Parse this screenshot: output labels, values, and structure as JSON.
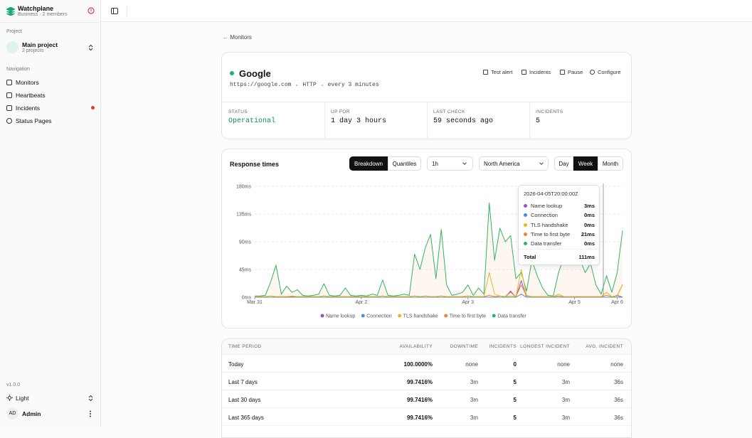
{
  "sidebar": {
    "workspace": "Watchplane",
    "workspace_sub": "Business · 2 members",
    "project_heading": "Project",
    "project": "Main project",
    "project_sub": "2 projects",
    "nav_heading": "Navigation",
    "nav": [
      "Monitors",
      "Heartbeats",
      "Incidents",
      "Status Pages"
    ],
    "version": "v1.0.0",
    "theme": "Light",
    "user_initials": "AD",
    "user": "Admin"
  },
  "breadcrumb": "Monitors",
  "monitor": {
    "name": "Google",
    "url": "https://google.com",
    "protocol": "HTTP",
    "interval": "every 3 minutes",
    "actions": [
      "Test alert",
      "Incidents",
      "Pause",
      "Configure"
    ],
    "stats": [
      {
        "label": "STATUS",
        "value": "Operational"
      },
      {
        "label": "UP FOR",
        "value": "1 day 3 hours"
      },
      {
        "label": "LAST CHECK",
        "value": "59 seconds ago"
      },
      {
        "label": "INCIDENTS",
        "value": "5"
      }
    ]
  },
  "chart_card": {
    "title": "Response times",
    "view_tabs": [
      "Breakdown",
      "Quantiles"
    ],
    "range": "1h",
    "region": "North America",
    "period_tabs": [
      "Day",
      "Week",
      "Month"
    ]
  },
  "chart_data": {
    "type": "line",
    "categories": [
      "Mar 31",
      null,
      null,
      null,
      null,
      null,
      null,
      null,
      null,
      null,
      null,
      null,
      null,
      null,
      null,
      null,
      null,
      null,
      null,
      null,
      "Apr 2",
      null,
      null,
      null,
      null,
      null,
      null,
      null,
      null,
      null,
      null,
      null,
      null,
      null,
      null,
      null,
      null,
      null,
      null,
      null,
      "Apr 3",
      null,
      null,
      null,
      null,
      null,
      null,
      null,
      null,
      null,
      null,
      null,
      null,
      null,
      null,
      null,
      null,
      null,
      null,
      null,
      "Apr 5",
      null,
      null,
      null,
      null,
      null,
      null,
      null,
      "Apr 6",
      null
    ],
    "series": [
      {
        "name": "Name lookup",
        "color": "#8e55c9",
        "values": [
          0,
          0,
          0,
          0,
          0,
          0,
          0,
          0,
          0,
          0,
          0,
          0,
          0,
          0,
          0,
          0,
          0,
          0,
          0,
          0,
          0,
          0,
          0,
          0,
          0,
          0,
          0,
          0,
          0,
          0,
          0,
          0,
          0,
          0,
          0,
          0,
          0,
          0,
          0,
          0,
          0,
          0,
          0,
          0,
          0,
          0,
          0,
          0,
          10,
          0,
          27,
          0,
          0,
          0,
          0,
          0,
          0,
          0,
          0,
          0,
          0,
          0,
          0,
          0,
          0,
          0,
          0,
          0,
          3,
          0
        ]
      },
      {
        "name": "Connection",
        "color": "#4a8fd6",
        "values": [
          0,
          0,
          0,
          0,
          0,
          0,
          0,
          0,
          0,
          0,
          0,
          0,
          0,
          0,
          0,
          0,
          0,
          0,
          0,
          0,
          0,
          0,
          0,
          0,
          0,
          0,
          0,
          0,
          0,
          0,
          0,
          0,
          0,
          0,
          0,
          0,
          0,
          0,
          0,
          0,
          0,
          0,
          0,
          0,
          0,
          0,
          0,
          0,
          0,
          0,
          5,
          0,
          0,
          0,
          0,
          0,
          0,
          0,
          0,
          0,
          0,
          0,
          0,
          0,
          0,
          0,
          0,
          0,
          0,
          0
        ]
      },
      {
        "name": "TLS handshake",
        "color": "#e9b81e",
        "values": [
          1,
          1,
          1,
          2,
          1,
          1,
          1,
          2,
          1,
          1,
          1,
          1,
          1,
          2,
          1,
          1,
          1,
          1,
          1,
          1,
          1,
          1,
          1,
          1,
          2,
          1,
          1,
          1,
          1,
          1,
          2,
          1,
          2,
          1,
          1,
          2,
          1,
          1,
          1,
          1,
          2,
          1,
          1,
          1,
          40,
          5,
          2,
          1,
          2,
          1,
          45,
          3,
          1,
          1,
          1,
          1,
          1,
          5,
          1,
          1,
          1,
          1,
          1,
          1,
          1,
          1,
          8,
          1,
          2,
          20
        ]
      },
      {
        "name": "Time to first byte",
        "color": "#e8843a",
        "values": [
          1,
          1,
          1,
          2,
          1,
          1,
          1,
          1,
          1,
          1,
          1,
          1,
          1,
          2,
          1,
          1,
          1,
          1,
          1,
          1,
          1,
          1,
          1,
          1,
          2,
          1,
          1,
          1,
          1,
          1,
          2,
          1,
          2,
          1,
          1,
          2,
          1,
          1,
          1,
          1,
          2,
          1,
          1,
          1,
          3,
          1,
          2,
          1,
          8,
          1,
          20,
          2,
          1,
          1,
          1,
          1,
          1,
          2,
          1,
          1,
          1,
          1,
          1,
          1,
          1,
          1,
          3,
          1,
          2,
          21
        ]
      },
      {
        "name": "Data transfer",
        "color": "#2fb463",
        "values": [
          2,
          2,
          3,
          25,
          52,
          5,
          18,
          8,
          12,
          3,
          2,
          3,
          5,
          22,
          3,
          2,
          3,
          15,
          3,
          2,
          3,
          2,
          5,
          3,
          28,
          3,
          2,
          3,
          5,
          3,
          70,
          45,
          80,
          102,
          30,
          110,
          20,
          3,
          5,
          8,
          20,
          3,
          15,
          5,
          153,
          60,
          112,
          90,
          100,
          30,
          40,
          10,
          60,
          35,
          15,
          3,
          2,
          40,
          65,
          70,
          55,
          62,
          40,
          55,
          20,
          5,
          35,
          8,
          40,
          108
        ]
      }
    ],
    "ylim": [
      0,
      180
    ],
    "yticks": [
      {
        "value": 0,
        "label": "0ms"
      },
      {
        "value": 45,
        "label": "45ms"
      },
      {
        "value": 90,
        "label": "90ms"
      },
      {
        "value": 135,
        "label": "135ms"
      },
      {
        "value": 180,
        "label": "180ms"
      }
    ],
    "grid": true,
    "legend": "bottom"
  },
  "tooltip": {
    "title": "2026-04-05T20:00:00Z",
    "values": [
      "3ms",
      "0ms",
      "0ms",
      "21ms",
      "0ms"
    ],
    "total_label": "Total",
    "total": "111ms"
  },
  "table": {
    "headers": [
      "TIME PERIOD",
      "AVAILABILITY",
      "DOWNTIME",
      "INCIDENTS",
      "LONGEST INCIDENT",
      "AVG. INCIDENT"
    ],
    "rows": [
      [
        "Today",
        "100.0000%",
        "none",
        "0",
        "none",
        "none"
      ],
      [
        "Last 7 days",
        "99.7416%",
        "3m",
        "5",
        "3m",
        "36s"
      ],
      [
        "Last 30 days",
        "99.7416%",
        "3m",
        "5",
        "3m",
        "36s"
      ],
      [
        "Last 365 days",
        "99.7416%",
        "3m",
        "5",
        "3m",
        "36s"
      ]
    ]
  }
}
